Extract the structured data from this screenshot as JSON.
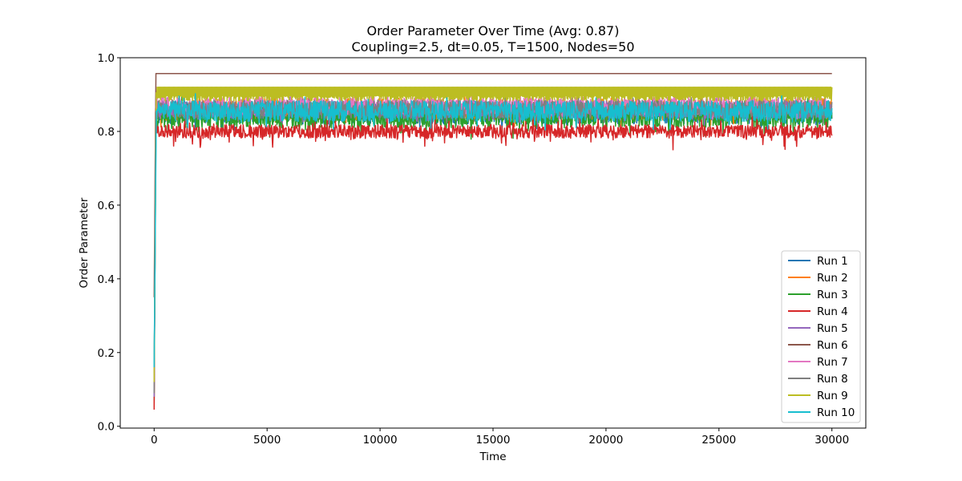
{
  "chart_data": {
    "type": "line",
    "title": "Order Parameter Over Time (Avg: 0.87)",
    "subtitle": "Coupling=2.5, dt=0.05, T=1500, Nodes=50",
    "xlabel": "Time",
    "ylabel": "Order Parameter",
    "xlim": [
      -1500,
      31500
    ],
    "ylim": [
      -0.005,
      1.0
    ],
    "xticks": [
      0,
      5000,
      10000,
      15000,
      20000,
      25000,
      30000
    ],
    "yticks": [
      0.0,
      0.2,
      0.4,
      0.6,
      0.8,
      1.0
    ],
    "xtick_labels": [
      "0",
      "5000",
      "10000",
      "15000",
      "20000",
      "25000",
      "30000"
    ],
    "ytick_labels": [
      "0.0",
      "0.2",
      "0.4",
      "0.6",
      "0.8",
      "1.0"
    ],
    "grid": false,
    "legend_position": "lower-right",
    "series": [
      {
        "name": "Run 1",
        "color": "#1f77b4",
        "start": 0.06,
        "mean": 0.85,
        "amp": 0.03,
        "spikes": 0.02
      },
      {
        "name": "Run 2",
        "color": "#ff7f0e",
        "start": 0.05,
        "mean": 0.86,
        "amp": 0.03,
        "spikes": 0.02
      },
      {
        "name": "Run 3",
        "color": "#2ca02c",
        "start": 0.07,
        "mean": 0.84,
        "amp": 0.03,
        "spikes": 0.03
      },
      {
        "name": "Run 4",
        "color": "#d62728",
        "start": 0.045,
        "mean": 0.8,
        "amp": 0.018,
        "spikes": 0.035
      },
      {
        "name": "Run 5",
        "color": "#9467bd",
        "start": 0.08,
        "mean": 0.86,
        "amp": 0.025,
        "spikes": 0.02
      },
      {
        "name": "Run 6",
        "color": "#8c564b",
        "start": 0.35,
        "mean": 0.957,
        "amp": 0.0,
        "spikes": 0.0
      },
      {
        "name": "Run 7",
        "color": "#e377c2",
        "start": 0.1,
        "mean": 0.87,
        "amp": 0.025,
        "spikes": 0.02
      },
      {
        "name": "Run 8",
        "color": "#7f7f7f",
        "start": 0.09,
        "mean": 0.86,
        "amp": 0.025,
        "spikes": 0.02
      },
      {
        "name": "Run 9",
        "color": "#bcbd22",
        "start": 0.12,
        "mean": 0.905,
        "amp": 0.015,
        "spikes": 0.0
      },
      {
        "name": "Run 10",
        "color": "#17becf",
        "start": 0.16,
        "mean": 0.855,
        "amp": 0.028,
        "spikes": 0.025
      }
    ],
    "time_end": 30000
  }
}
